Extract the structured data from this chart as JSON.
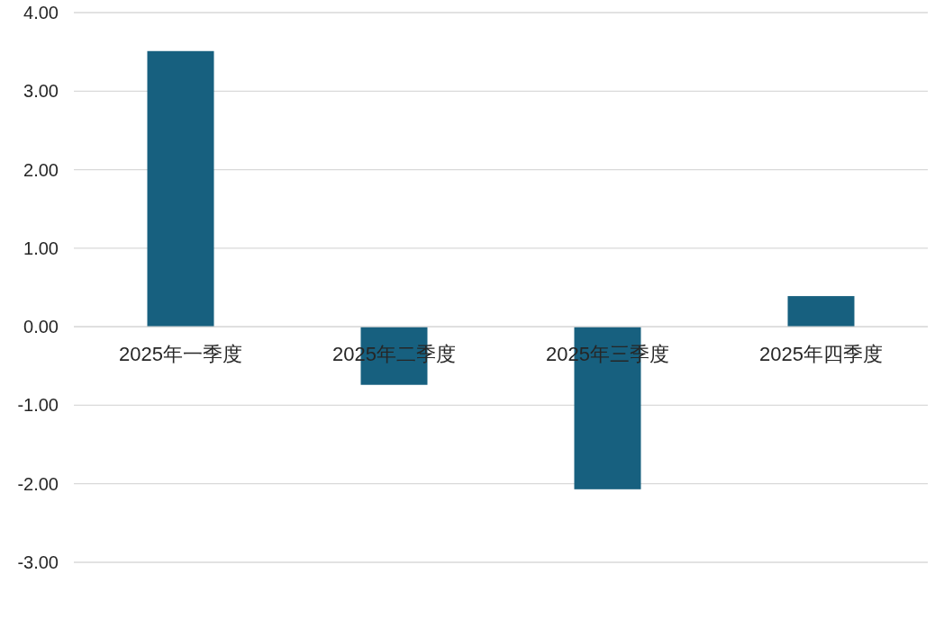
{
  "chart_data": {
    "type": "bar",
    "categories": [
      "2025年一季度",
      "2025年二季度",
      "2025年三季度",
      "2025年四季度"
    ],
    "values": [
      3.51,
      -0.74,
      -2.07,
      0.39
    ],
    "color": "#17607f",
    "ylim": [
      -3,
      4
    ],
    "yticks": [
      {
        "value": 4,
        "label": "4.00"
      },
      {
        "value": 3,
        "label": "3.00"
      },
      {
        "value": 2,
        "label": "2.00"
      },
      {
        "value": 1,
        "label": "1.00"
      },
      {
        "value": 0,
        "label": "0.00"
      },
      {
        "value": -1,
        "label": "-1.00"
      },
      {
        "value": -2,
        "label": "-2.00"
      },
      {
        "value": -3,
        "label": "-3.00"
      }
    ],
    "grid": "y"
  }
}
